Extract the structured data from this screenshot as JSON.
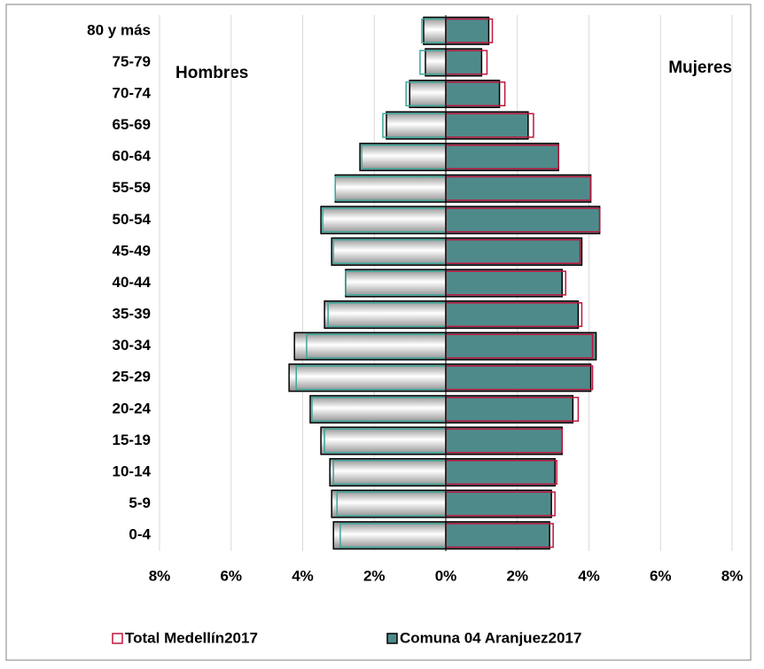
{
  "chart_data": {
    "type": "pyramid",
    "categories": [
      "0-4",
      "5-9",
      "10-14",
      "15-19",
      "20-24",
      "25-29",
      "30-34",
      "35-39",
      "40-44",
      "45-49",
      "50-54",
      "55-59",
      "60-64",
      "65-69",
      "70-74",
      "75-79",
      "80 y más"
    ],
    "series": [
      {
        "name": "Total Medellín2017",
        "color": "#c0143c",
        "men_color": "#3aa79a",
        "men": [
          2.95,
          3.04,
          3.14,
          3.39,
          3.74,
          4.18,
          3.89,
          3.29,
          2.8,
          3.14,
          3.44,
          3.09,
          2.35,
          1.76,
          1.11,
          0.72,
          0.67
        ],
        "women": [
          3.0,
          3.05,
          3.1,
          3.25,
          3.7,
          4.1,
          4.1,
          3.8,
          3.35,
          3.75,
          4.3,
          4.05,
          3.15,
          2.45,
          1.65,
          1.15,
          1.3
        ]
      },
      {
        "name": "Comuna 04 Aranjuez2017",
        "color": "#4f8a8b",
        "men": [
          3.14,
          3.19,
          3.24,
          3.49,
          3.79,
          4.38,
          4.23,
          3.39,
          2.8,
          3.19,
          3.49,
          3.09,
          2.4,
          1.66,
          1.01,
          0.57,
          0.62
        ],
        "women": [
          2.9,
          2.95,
          3.05,
          3.25,
          3.55,
          4.05,
          4.2,
          3.7,
          3.25,
          3.8,
          4.3,
          4.05,
          3.15,
          2.3,
          1.5,
          1.0,
          1.2
        ]
      }
    ],
    "annotations": {
      "left": "Hombres",
      "right": "Mujeres"
    },
    "xlim": [
      -8,
      8
    ],
    "xticks": [
      {
        "value": -8,
        "label": "8%"
      },
      {
        "value": -6,
        "label": "6%"
      },
      {
        "value": -4,
        "label": "4%"
      },
      {
        "value": -2,
        "label": "2%"
      },
      {
        "value": 0,
        "label": "0%"
      },
      {
        "value": 2,
        "label": "2%"
      },
      {
        "value": 4,
        "label": "4%"
      },
      {
        "value": 6,
        "label": "6%"
      },
      {
        "value": 8,
        "label": "8%"
      }
    ],
    "grid": true
  }
}
